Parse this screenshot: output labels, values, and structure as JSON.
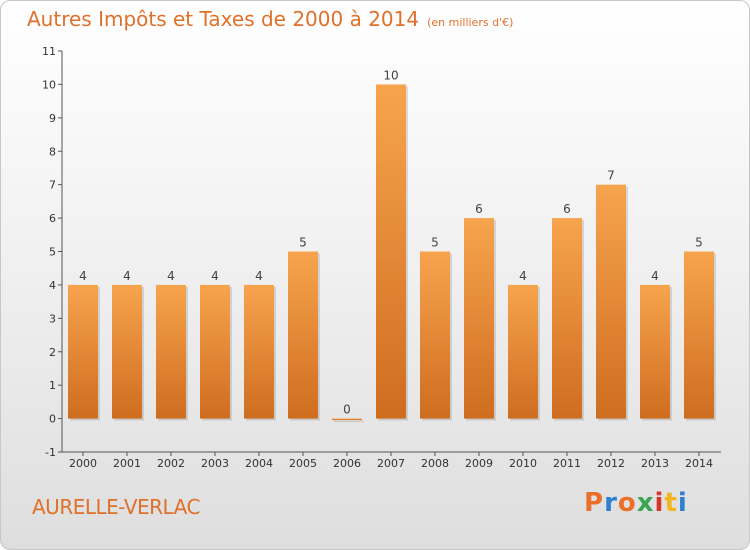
{
  "header": {
    "title": "Autres Impôts et Taxes de 2000 à 2014",
    "subtitle": "(en milliers d'€)"
  },
  "footer": {
    "commune": "AURELLE-VERLAC",
    "logo_text": "Proxiti",
    "logo_colors": [
      "#e8702a",
      "#2d7fd2",
      "#e8702a",
      "#3aa655",
      "#d9362b",
      "#f2b51b",
      "#2d7fd2"
    ]
  },
  "colors": {
    "bar_light": "#f7a44e",
    "bar_dark": "#cf6d1f",
    "accent": "#e0702a"
  },
  "chart_data": {
    "type": "bar",
    "title": "Autres Impôts et Taxes de 2000 à 2014",
    "subtitle": "(en milliers d'€)",
    "categories": [
      "2000",
      "2001",
      "2002",
      "2003",
      "2004",
      "2005",
      "2006",
      "2007",
      "2008",
      "2009",
      "2010",
      "2011",
      "2012",
      "2013",
      "2014"
    ],
    "values": [
      4,
      4,
      4,
      4,
      4,
      5,
      0,
      10,
      5,
      6,
      4,
      6,
      7,
      4,
      5
    ],
    "value_labels": [
      "4",
      "4",
      "4",
      "4",
      "4",
      "5",
      "0",
      "10",
      "5",
      "6",
      "4",
      "6",
      "7",
      "4",
      "5"
    ],
    "ylim": [
      -1,
      11
    ],
    "yticks": [
      "-1",
      "0",
      "1",
      "2",
      "3",
      "4",
      "5",
      "6",
      "7",
      "8",
      "9",
      "10",
      "11"
    ],
    "xlabel": "",
    "ylabel": "",
    "grid": false,
    "legend": "none"
  }
}
